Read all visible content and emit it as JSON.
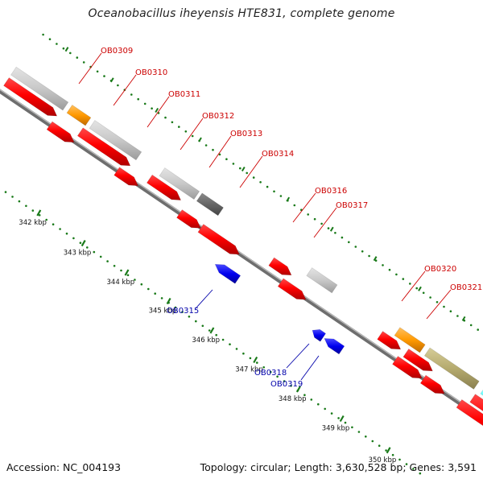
{
  "title": "Oceanobacillus iheyensis HTE831, complete genome",
  "footer": {
    "accession": "Accession: NC_004193",
    "stats": "Topology: circular; Length: 3,630,528 bp; Genes: 3,591"
  },
  "colors": {
    "forward_cds": "#ff0000",
    "reverse_cds": "#1010e0",
    "backbone": "#7a7a7a",
    "ruler_ticks": "#1a7a1a",
    "label_forward": "#cc0000",
    "label_reverse": "#0000aa",
    "cog_gray": "#c8c8c8",
    "cog_dark": "#666666",
    "cog_orange": "#ff9900",
    "cog_olive": "#b5aa6e",
    "cog_cyan": "#00ffff"
  },
  "kbp_labels": [
    "342 kbp",
    "343 kbp",
    "344 kbp",
    "345 kbp",
    "346 kbp",
    "347 kbp",
    "348 kbp",
    "349 kbp",
    "350 kbp"
  ],
  "genes_forward": [
    "OB0309",
    "OB0310",
    "OB0311",
    "OB0312",
    "OB0313",
    "OB0314",
    "OB0316",
    "OB0317",
    "OB0320",
    "OB0321"
  ],
  "genes_reverse": [
    "OB0315",
    "OB0318",
    "OB0319"
  ]
}
